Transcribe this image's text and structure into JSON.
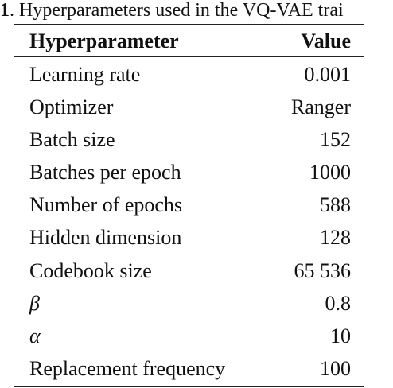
{
  "caption": {
    "number": "1",
    "text": ". Hyperparameters used in the VQ-VAE trai"
  },
  "table": {
    "headers": {
      "name": "Hyperparameter",
      "value": "Value"
    },
    "rows": [
      {
        "name": "Learning rate",
        "value": "0.001"
      },
      {
        "name": "Optimizer",
        "value": "Ranger"
      },
      {
        "name": "Batch size",
        "value": "152"
      },
      {
        "name": "Batches per epoch",
        "value": "1000"
      },
      {
        "name": "Number of epochs",
        "value": "588"
      },
      {
        "name": "Hidden dimension",
        "value": "128"
      },
      {
        "name": "Codebook size",
        "value": "65 536"
      },
      {
        "name": "β",
        "value": "0.8"
      },
      {
        "name": "α",
        "value": "10"
      },
      {
        "name": "Replacement frequency",
        "value": "100"
      }
    ]
  }
}
